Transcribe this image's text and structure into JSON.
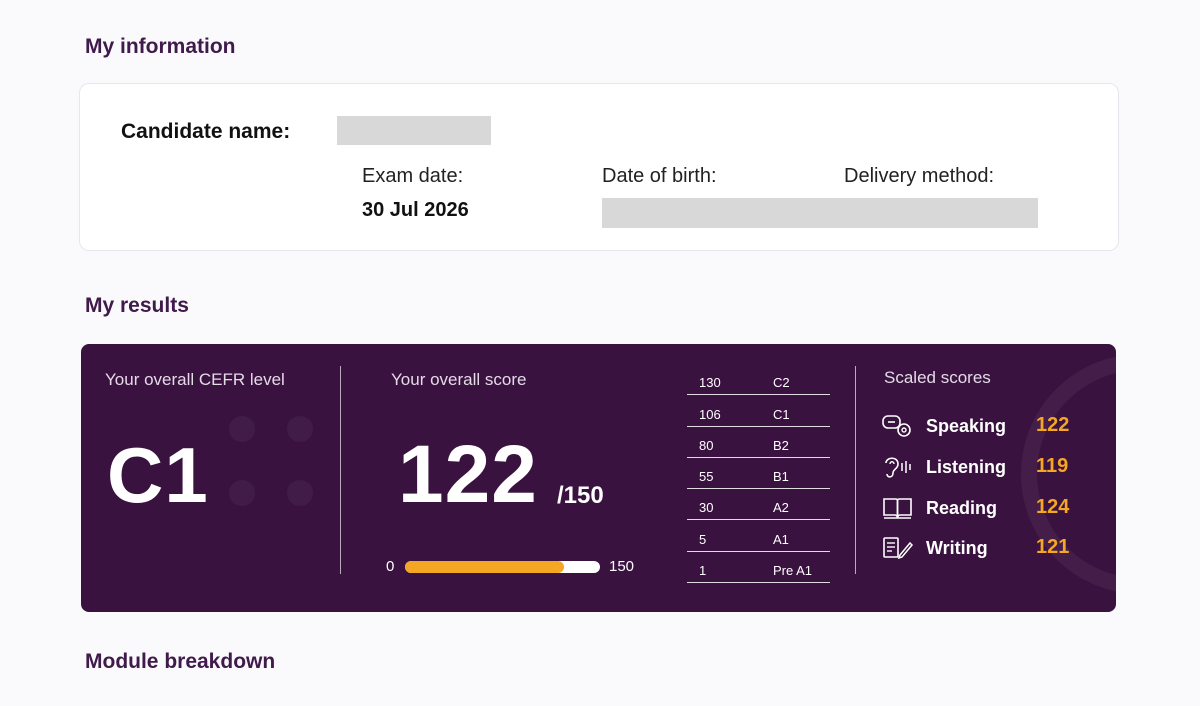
{
  "sections": {
    "my_information": "My information",
    "my_results": "My results",
    "module_breakdown": "Module breakdown"
  },
  "info": {
    "candidate_label": "Candidate name:",
    "exam_date_label": "Exam date:",
    "exam_date_value": "30 Jul 2026",
    "dob_label": "Date of birth:",
    "delivery_label": "Delivery method:"
  },
  "results": {
    "cefr_label": "Your overall CEFR level",
    "cefr_value": "C1",
    "score_label": "Your overall score",
    "score_value": "122",
    "score_max_text": "/150",
    "progress": {
      "min": "0",
      "max": "150",
      "value": 122,
      "fraction": 0.8133
    },
    "scale": [
      {
        "score": "130",
        "level": "C2"
      },
      {
        "score": "106",
        "level": "C1"
      },
      {
        "score": "80",
        "level": "B2"
      },
      {
        "score": "55",
        "level": "B1"
      },
      {
        "score": "30",
        "level": "A2"
      },
      {
        "score": "5",
        "level": "A1"
      },
      {
        "score": "1",
        "level": "Pre A1"
      }
    ],
    "scaled_title": "Scaled scores",
    "skills": [
      {
        "name": "Speaking",
        "score": "122",
        "icon": "speech-bubbles-icon"
      },
      {
        "name": "Listening",
        "score": "119",
        "icon": "ear-icon"
      },
      {
        "name": "Reading",
        "score": "124",
        "icon": "open-book-icon"
      },
      {
        "name": "Writing",
        "score": "121",
        "icon": "document-pen-icon"
      }
    ]
  },
  "colors": {
    "heading": "#3f1a4a",
    "results_bg": "#3a1240",
    "accent": "#f5a623"
  }
}
